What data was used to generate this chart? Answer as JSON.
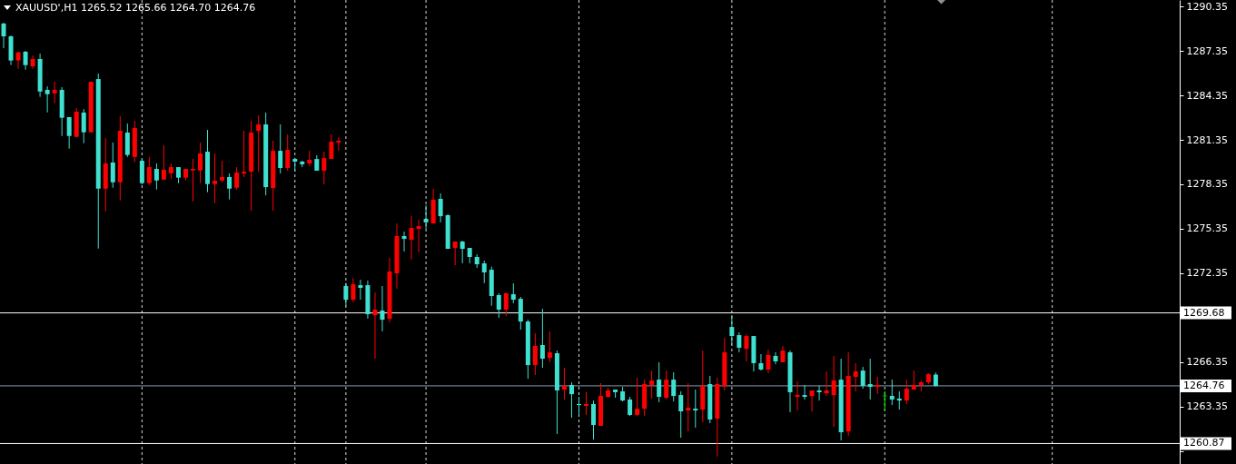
{
  "chart_data": {
    "type": "candlestick",
    "title": "XAUUSD',H1 1265.52 1265.66 1264.70 1264.76",
    "categories": [
      null,
      null,
      null,
      null,
      null,
      null,
      null,
      null,
      null,
      null,
      null,
      null,
      null,
      null,
      null,
      null,
      null,
      null,
      null,
      null,
      null,
      null,
      null,
      null,
      null,
      null,
      null,
      null,
      null,
      null,
      null,
      null,
      null,
      null,
      null,
      null,
      null,
      null,
      null,
      null,
      null,
      null,
      null,
      null,
      null,
      null,
      null,
      null,
      null,
      null,
      null,
      null,
      null,
      null,
      null,
      null,
      null,
      null,
      null,
      null,
      null,
      null,
      null,
      null,
      null,
      null,
      null,
      null,
      null,
      null,
      null,
      null,
      null,
      null,
      null,
      null,
      null,
      null,
      null,
      null,
      null,
      null,
      null,
      null,
      null,
      null,
      null,
      null,
      null,
      null,
      null,
      null,
      null,
      null,
      null,
      null,
      null,
      null,
      null,
      null,
      null,
      null,
      null,
      null,
      null,
      null,
      null,
      null,
      null,
      null,
      null,
      null,
      null,
      null,
      null,
      null,
      null,
      null,
      null,
      null,
      null,
      null,
      null,
      null,
      null,
      null,
      null,
      null,
      null,
      null,
      null,
      null,
      null,
      null,
      null,
      null,
      null,
      null,
      null,
      null,
      null,
      null,
      null,
      null,
      null,
      null,
      null,
      null,
      null,
      null,
      null,
      null,
      null,
      null,
      null,
      null,
      null,
      null,
      null,
      null,
      null,
      null
    ],
    "ohlc": [
      [
        1289.19,
        1289.25,
        1287.53,
        1288.33
      ],
      [
        1288.33,
        1288.39,
        1286.39,
        1286.7
      ],
      [
        1286.7,
        1287.29,
        1286.14,
        1287.25
      ],
      [
        1287.29,
        1287.35,
        1286.08,
        1286.39
      ],
      [
        1286.31,
        1287.04,
        1286.14,
        1286.8
      ],
      [
        1286.8,
        1287.17,
        1284.25,
        1284.61
      ],
      [
        1284.72,
        1284.96,
        1283.2,
        1284.43
      ],
      [
        1284.49,
        1285.27,
        1283.82,
        1284.72
      ],
      [
        1284.72,
        1284.9,
        1281.61,
        1282.84
      ],
      [
        1282.88,
        1282.88,
        1280.76,
        1281.61
      ],
      [
        1281.55,
        1283.49,
        1281.55,
        1283.25
      ],
      [
        1283.19,
        1283.43,
        1281.12,
        1281.86
      ],
      [
        1281.86,
        1285.27,
        1281.86,
        1285.27
      ],
      [
        1285.45,
        1285.82,
        1274.02,
        1278.06
      ],
      [
        1278.06,
        1281.47,
        1276.53,
        1279.76
      ],
      [
        1279.82,
        1281.17,
        1278.12,
        1278.49
      ],
      [
        1278.49,
        1282.94,
        1277.26,
        1281.96
      ],
      [
        1281.84,
        1282.45,
        1280.2,
        1280.33
      ],
      [
        1280.2,
        1282.63,
        1279.84,
        1282.15
      ],
      [
        1279.94,
        1280.12,
        1278.35,
        1278.43
      ],
      [
        1278.43,
        1280.19,
        1278.31,
        1279.51
      ],
      [
        1279.39,
        1279.76,
        1278.0,
        1278.61
      ],
      [
        1278.67,
        1280.98,
        1278.67,
        1279.33
      ],
      [
        1279.1,
        1279.76,
        1278.73,
        1279.51
      ],
      [
        1279.51,
        1279.51,
        1278.43,
        1278.8
      ],
      [
        1278.8,
        1279.39,
        1278.61,
        1279.39
      ],
      [
        1279.29,
        1280.06,
        1277.2,
        1279.39
      ],
      [
        1279.29,
        1281.17,
        1278.43,
        1280.43
      ],
      [
        1280.55,
        1282.02,
        1277.82,
        1278.37
      ],
      [
        1278.37,
        1280.43,
        1277.08,
        1278.59
      ],
      [
        1278.61,
        1279.94,
        1278.49,
        1278.84
      ],
      [
        1278.84,
        1279.08,
        1277.33,
        1278.06
      ],
      [
        1278.12,
        1279.51,
        1278.0,
        1279.14
      ],
      [
        1279.08,
        1281.96,
        1278.84,
        1279.2
      ],
      [
        1279.2,
        1282.63,
        1276.57,
        1281.84
      ],
      [
        1281.96,
        1283.0,
        1279.2,
        1282.39
      ],
      [
        1282.39,
        1283.19,
        1277.61,
        1278.16
      ],
      [
        1278.1,
        1281.29,
        1276.57,
        1280.61
      ],
      [
        1280.61,
        1282.39,
        1279.08,
        1279.45
      ],
      [
        1279.45,
        1281.72,
        1279.27,
        1280.67
      ],
      [
        1280.06,
        1280.12,
        1279.2,
        1279.88
      ],
      [
        1279.88,
        1279.94,
        1279.51,
        1279.7
      ],
      [
        1279.76,
        1280.61,
        1279.57,
        1280.0
      ],
      [
        1280.06,
        1280.31,
        1279.27,
        1279.27
      ],
      [
        1279.27,
        1280.55,
        1278.35,
        1280.12
      ],
      [
        1280.06,
        1281.72,
        1280.06,
        1281.23
      ],
      [
        1281.17,
        1281.53,
        1280.61,
        1281.29
      ],
      [
        1271.49,
        1271.69,
        1270.14,
        1270.57
      ],
      [
        1270.57,
        1272.04,
        1270.39,
        1271.61
      ],
      [
        1271.55,
        1271.92,
        1270.57,
        1271.37
      ],
      [
        1271.55,
        1271.86,
        1269.29,
        1269.59
      ],
      [
        1269.53,
        1271.06,
        1266.59,
        1269.9
      ],
      [
        1269.84,
        1271.49,
        1268.43,
        1269.22
      ],
      [
        1269.29,
        1273.39,
        1269.04,
        1272.47
      ],
      [
        1272.35,
        1275.71,
        1271.31,
        1274.86
      ],
      [
        1274.86,
        1275.16,
        1273.82,
        1274.67
      ],
      [
        1274.61,
        1276.2,
        1273.27,
        1275.41
      ],
      [
        1275.35,
        1275.96,
        1273.76,
        1275.53
      ],
      [
        1276.02,
        1276.94,
        1275.35,
        1275.78
      ],
      [
        1275.71,
        1278.04,
        1275.71,
        1277.31
      ],
      [
        1277.37,
        1277.74,
        1275.78,
        1276.2
      ],
      [
        1276.27,
        1276.33,
        1274.0,
        1274.0
      ],
      [
        1274.06,
        1274.49,
        1272.9,
        1274.49
      ],
      [
        1274.49,
        1274.55,
        1273.02,
        1274.0
      ],
      [
        1274.06,
        1274.06,
        1273.02,
        1273.45
      ],
      [
        1273.45,
        1273.63,
        1272.71,
        1272.96
      ],
      [
        1273.02,
        1273.2,
        1271.69,
        1272.41
      ],
      [
        1272.59,
        1272.8,
        1270.16,
        1270.82
      ],
      [
        1270.88,
        1271.0,
        1269.35,
        1269.9
      ],
      [
        1269.9,
        1271.06,
        1269.47,
        1271.0
      ],
      [
        1270.94,
        1271.67,
        1270.33,
        1270.57
      ],
      [
        1270.63,
        1270.76,
        1268.55,
        1269.1
      ],
      [
        1269.1,
        1269.22,
        1265.24,
        1266.16
      ],
      [
        1266.16,
        1268.31,
        1265.49,
        1267.45
      ],
      [
        1267.51,
        1269.96,
        1265.98,
        1266.59
      ],
      [
        1266.65,
        1268.43,
        1266.35,
        1267.02
      ],
      [
        1266.96,
        1267.14,
        1261.51,
        1264.45
      ],
      [
        1264.51,
        1265.98,
        1263.84,
        1264.76
      ],
      [
        1264.82,
        1265.0,
        1262.61,
        1264.2
      ],
      [
        1263.53,
        1264.02,
        1262.8,
        1263.47
      ],
      [
        1263.41,
        1264.33,
        1262.8,
        1263.53
      ],
      [
        1263.53,
        1263.77,
        1261.14,
        1262.12
      ],
      [
        1262.06,
        1264.94,
        1262.06,
        1264.08
      ],
      [
        1264.02,
        1264.63,
        1263.96,
        1264.45
      ],
      [
        1264.51,
        1264.51,
        1263.96,
        1264.33
      ],
      [
        1264.39,
        1264.69,
        1263.71,
        1263.77
      ],
      [
        1263.84,
        1264.02,
        1262.73,
        1262.8
      ],
      [
        1262.8,
        1265.31,
        1262.73,
        1263.22
      ],
      [
        1263.22,
        1265.18,
        1262.73,
        1264.88
      ],
      [
        1264.82,
        1265.79,
        1263.9,
        1265.12
      ],
      [
        1265.18,
        1266.35,
        1263.65,
        1264.02
      ],
      [
        1263.96,
        1265.79,
        1263.84,
        1265.18
      ],
      [
        1265.18,
        1265.67,
        1263.71,
        1264.08
      ],
      [
        1264.14,
        1264.39,
        1261.26,
        1263.04
      ],
      [
        1263.1,
        1264.94,
        1261.69,
        1263.28
      ],
      [
        1263.22,
        1264.51,
        1261.94,
        1263.1
      ],
      [
        1263.16,
        1267.14,
        1262.3,
        1264.76
      ],
      [
        1264.88,
        1265.43,
        1262.24,
        1262.49
      ],
      [
        1262.55,
        1265.31,
        1260.0,
        1264.88
      ],
      [
        1264.76,
        1268.0,
        1264.45,
        1267.02
      ],
      [
        1268.73,
        1269.53,
        1267.51,
        1268.12
      ],
      [
        1268.18,
        1268.37,
        1267.02,
        1267.33
      ],
      [
        1267.26,
        1268.24,
        1266.41,
        1268.12
      ],
      [
        1268.12,
        1268.12,
        1265.73,
        1266.29
      ],
      [
        1266.29,
        1266.9,
        1265.79,
        1265.86
      ],
      [
        1265.86,
        1267.2,
        1265.61,
        1266.84
      ],
      [
        1266.78,
        1267.02,
        1266.22,
        1266.41
      ],
      [
        1266.35,
        1267.45,
        1266.35,
        1267.14
      ],
      [
        1267.02,
        1267.14,
        1262.98,
        1264.33
      ],
      [
        1264.02,
        1265.06,
        1263.1,
        1264.14
      ],
      [
        1264.14,
        1264.82,
        1263.84,
        1264.02
      ],
      [
        1264.08,
        1264.45,
        1263.04,
        1264.45
      ],
      [
        1264.45,
        1264.76,
        1263.77,
        1264.33
      ],
      [
        1264.26,
        1265.73,
        1264.08,
        1264.45
      ],
      [
        1264.14,
        1266.78,
        1262.0,
        1265.12
      ],
      [
        1265.18,
        1266.59,
        1261.08,
        1261.63
      ],
      [
        1261.69,
        1267.02,
        1261.39,
        1265.43
      ],
      [
        1265.37,
        1266.29,
        1264.39,
        1265.73
      ],
      [
        1265.79,
        1266.04,
        1264.57,
        1264.76
      ],
      [
        1264.88,
        1266.59,
        1263.84,
        1264.69
      ],
      [
        1264.69,
        1265.37,
        1264.2,
        1264.82
      ],
      [
        1264.08,
        1264.39,
        1263.04,
        1264.08
      ],
      [
        1264.08,
        1265.18,
        1263.47,
        1263.84
      ],
      [
        1263.9,
        1264.39,
        1263.16,
        1263.77
      ],
      [
        1263.77,
        1265.18,
        1263.53,
        1264.57
      ],
      [
        1264.51,
        1265.79,
        1264.51,
        1264.82
      ],
      [
        1264.82,
        1265.12,
        1264.39,
        1265.0
      ],
      [
        1265.0,
        1265.61,
        1264.88,
        1265.55
      ],
      [
        1265.52,
        1265.66,
        1264.7,
        1264.76
      ],
      null,
      null,
      null,
      null,
      null,
      null,
      null,
      null,
      null,
      null,
      null,
      null,
      null,
      null,
      null,
      null,
      null,
      null,
      null,
      null,
      null,
      null,
      null,
      null,
      null,
      null,
      null,
      null,
      null,
      null,
      null,
      null,
      null
    ],
    "colors": [
      "#40e0d0",
      "#40e0d0",
      "#ff0000",
      "#40e0d0",
      "#ff0000",
      "#40e0d0",
      "#40e0d0",
      "#ff0000",
      "#40e0d0",
      "#40e0d0",
      "#ff0000",
      "#40e0d0",
      "#ff0000",
      "#40e0d0",
      "#ff0000",
      "#40e0d0",
      "#ff0000",
      "#40e0d0",
      "#ff0000",
      "#40e0d0",
      "#ff0000",
      "#40e0d0",
      "#ff0000",
      "#ff0000",
      "#40e0d0",
      "#ff0000",
      "#ff0000",
      "#ff0000",
      "#40e0d0",
      "#ff0000",
      "#ff0000",
      "#40e0d0",
      "#ff0000",
      "#ff0000",
      "#ff0000",
      "#ff0000",
      "#40e0d0",
      "#ff0000",
      "#40e0d0",
      "#ff0000",
      "#40e0d0",
      "#40e0d0",
      "#ff0000",
      "#40e0d0",
      "#ff0000",
      "#ff0000",
      "#ff0000",
      "#40e0d0",
      "#ff0000",
      "#40e0d0",
      "#40e0d0",
      "#ff0000",
      "#40e0d0",
      "#ff0000",
      "#ff0000",
      "#40e0d0",
      "#ff0000",
      "#ff0000",
      "#40e0d0",
      "#ff0000",
      "#40e0d0",
      "#40e0d0",
      "#ff0000",
      "#40e0d0",
      "#40e0d0",
      "#40e0d0",
      "#40e0d0",
      "#40e0d0",
      "#40e0d0",
      "#ff0000",
      "#40e0d0",
      "#40e0d0",
      "#40e0d0",
      "#ff0000",
      "#40e0d0",
      "#ff0000",
      "#40e0d0",
      "#ff0000",
      "#40e0d0",
      "#40e0d0",
      "#ff0000",
      "#40e0d0",
      "#ff0000",
      "#ff0000",
      "#40e0d0",
      "#40e0d0",
      "#40e0d0",
      "#ff0000",
      "#ff0000",
      "#ff0000",
      "#40e0d0",
      "#ff0000",
      "#40e0d0",
      "#40e0d0",
      "#ff0000",
      "#40e0d0",
      "#ff0000",
      "#40e0d0",
      "#ff0000",
      "#ff0000",
      "#40e0d0",
      "#40e0d0",
      "#ff0000",
      "#40e0d0",
      "#40e0d0",
      "#ff0000",
      "#40e0d0",
      "#ff0000",
      "#40e0d0",
      "#ff0000",
      "#40e0d0",
      "#ff0000",
      "#40e0d0",
      "#ff0000",
      "#ff0000",
      "#40e0d0",
      "#ff0000",
      "#ff0000",
      "#40e0d0",
      "#40e0d0",
      "#ff0000",
      "#00ff00",
      "#40e0d0",
      "#40e0d0",
      "#ff0000",
      "#ff0000",
      "#ff0000",
      "#ff0000",
      "#40e0d0",
      null,
      null,
      null,
      null,
      null,
      null,
      null,
      null,
      null,
      null,
      null,
      null,
      null,
      null,
      null,
      null,
      null,
      null,
      null,
      null,
      null,
      null,
      null,
      null,
      null,
      null,
      null,
      null,
      null,
      null,
      null,
      null,
      null
    ],
    "ylim": [
      1259.49,
      1290.78
    ],
    "yticks": [
      {
        "value": 1260.35,
        "label": null
      },
      1263.35,
      1266.35,
      {
        "value": 1269.35,
        "label": null
      },
      1272.35,
      1275.35,
      1278.35,
      1281.35,
      1284.35,
      1287.35,
      1290.35
    ],
    "ref_lines": [
      {
        "axis": "y",
        "value": 1269.68,
        "label": "1269.68",
        "color": "#ffffff"
      },
      {
        "axis": "y",
        "value": 1264.76,
        "label": "1264.76",
        "color": "#8a9bb0"
      },
      {
        "axis": "y",
        "value": 1260.87,
        "label": "1260.87",
        "color": "#ffffff"
      }
    ]
  }
}
